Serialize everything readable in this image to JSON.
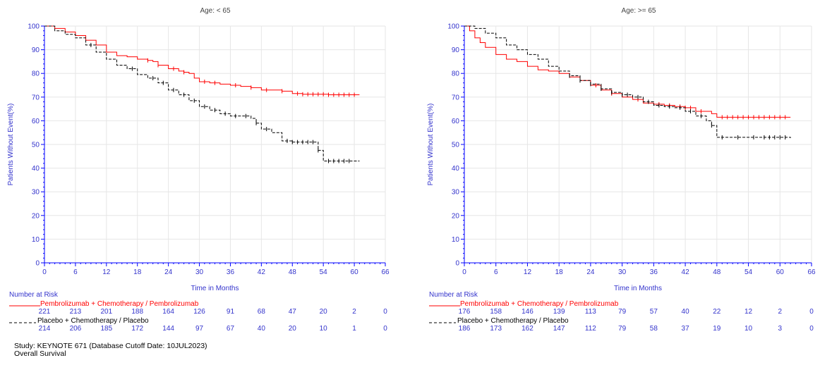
{
  "chart_data": [
    {
      "type": "line",
      "title": "Age: < 65",
      "xlabel": "Time in Months",
      "ylabel": "Patients Without Event(%)",
      "xlim": [
        0,
        66
      ],
      "ylim": [
        0,
        100
      ],
      "x_ticks": [
        0,
        6,
        12,
        18,
        24,
        30,
        36,
        42,
        48,
        54,
        60,
        66
      ],
      "y_ticks": [
        0,
        10,
        20,
        30,
        40,
        50,
        60,
        70,
        80,
        90,
        100
      ],
      "grid": true,
      "series": [
        {
          "name": "Pembrolizumab + Chemotherapy / Pembrolizumab",
          "color": "#ff0000",
          "dash": "solid",
          "x": [
            0,
            2,
            4,
            6,
            8,
            10,
            12,
            14,
            16,
            18,
            20,
            21,
            22,
            24,
            26,
            27,
            28,
            29,
            30,
            32,
            34,
            36,
            38,
            40,
            42,
            44,
            46,
            47,
            48,
            50,
            55,
            61
          ],
          "y": [
            100,
            99,
            97.5,
            96,
            94,
            92,
            89,
            87.5,
            87,
            86,
            85.5,
            85,
            83.5,
            82,
            81,
            80.5,
            80,
            78,
            76.5,
            76,
            75.5,
            75,
            74.5,
            74,
            73,
            73,
            72.5,
            72.5,
            71.5,
            71.2,
            71,
            71
          ],
          "censor_x": [
            20,
            22,
            25,
            27,
            31,
            33,
            37,
            40,
            43,
            46,
            49,
            50,
            51,
            52,
            53,
            54,
            55,
            56,
            57,
            58,
            59,
            60
          ]
        },
        {
          "name": "Placebo + Chemotherapy / Placebo",
          "color": "#000000",
          "dash": "dashed",
          "x": [
            0,
            2,
            4,
            6,
            8,
            10,
            12,
            14,
            16,
            18,
            20,
            22,
            24,
            26,
            28,
            30,
            32,
            34,
            36,
            38,
            40,
            41,
            42,
            44,
            46,
            48,
            50,
            53,
            54,
            61
          ],
          "y": [
            100,
            98,
            96.5,
            95,
            92,
            89,
            86,
            83.5,
            82,
            79.5,
            78,
            76,
            73,
            71,
            68.5,
            66,
            64.5,
            63,
            62,
            62,
            61,
            59,
            56.5,
            55,
            51.5,
            51,
            51,
            47.5,
            43,
            43
          ],
          "censor_x": [
            9,
            17,
            21,
            23,
            25,
            27,
            29,
            31,
            33,
            35,
            37,
            39,
            41,
            43,
            47,
            48,
            49,
            50,
            51,
            52,
            53,
            55,
            56,
            57,
            58,
            59
          ]
        }
      ],
      "risk_table": {
        "header": "Number at Risk",
        "times": [
          0,
          6,
          12,
          18,
          24,
          30,
          36,
          42,
          48,
          54,
          60,
          66
        ],
        "rows": [
          {
            "label": "Pembrolizumab + Chemotherapy / Pembrolizumab",
            "color": "#ff0000",
            "values": [
              "221",
              "213",
              "201",
              "188",
              "164",
              "126",
              "91",
              "68",
              "47",
              "20",
              "2",
              "0"
            ]
          },
          {
            "label": "Placebo + Chemotherapy / Placebo",
            "color": "#000000",
            "values": [
              "214",
              "206",
              "185",
              "172",
              "144",
              "97",
              "67",
              "40",
              "20",
              "10",
              "1",
              "0"
            ]
          }
        ]
      }
    },
    {
      "type": "line",
      "title": "Age: >= 65",
      "xlabel": "Time in Months",
      "ylabel": "Patients Without Event(%)",
      "xlim": [
        0,
        66
      ],
      "ylim": [
        0,
        100
      ],
      "x_ticks": [
        0,
        6,
        12,
        18,
        24,
        30,
        36,
        42,
        48,
        54,
        60,
        66
      ],
      "y_ticks": [
        0,
        10,
        20,
        30,
        40,
        50,
        60,
        70,
        80,
        90,
        100
      ],
      "grid": true,
      "series": [
        {
          "name": "Pembrolizumab + Chemotherapy / Pembrolizumab",
          "color": "#ff0000",
          "dash": "solid",
          "x": [
            0,
            1,
            2,
            3,
            4,
            6,
            8,
            10,
            12,
            14,
            16,
            18,
            20,
            22,
            24,
            26,
            28,
            30,
            32,
            34,
            36,
            38,
            40,
            42,
            44,
            46,
            47,
            48,
            62
          ],
          "y": [
            100,
            98,
            95,
            93,
            91,
            88,
            86,
            85,
            83,
            81.5,
            81,
            80,
            78.5,
            77,
            75,
            73,
            71.5,
            70,
            69,
            67.5,
            67,
            66.5,
            66,
            65.5,
            64,
            64,
            63,
            61.5,
            61.5
          ],
          "censor_x": [
            25,
            28,
            33,
            37,
            39,
            41,
            42,
            43,
            45,
            49,
            50,
            51,
            52,
            53,
            54,
            55,
            56,
            57,
            58,
            59,
            60,
            61
          ]
        },
        {
          "name": "Placebo + Chemotherapy / Placebo",
          "color": "#000000",
          "dash": "dashed",
          "x": [
            0,
            2,
            4,
            6,
            8,
            10,
            12,
            14,
            16,
            18,
            20,
            22,
            24,
            26,
            28,
            30,
            32,
            34,
            36,
            38,
            40,
            42,
            44,
            46,
            47,
            48,
            62
          ],
          "y": [
            100,
            99,
            97,
            95,
            92,
            90,
            88,
            86,
            83,
            81,
            79,
            77,
            75.5,
            73.5,
            72,
            71,
            70,
            68,
            66.5,
            66,
            65.5,
            64,
            62,
            60,
            58,
            53,
            52.7
          ],
          "censor_x": [
            20,
            22,
            24,
            26,
            28,
            30,
            31,
            33,
            35,
            37,
            39,
            41,
            43,
            45,
            47,
            49,
            52,
            55,
            57,
            58,
            59,
            60,
            61
          ]
        }
      ],
      "risk_table": {
        "header": "Number at Risk",
        "times": [
          0,
          6,
          12,
          18,
          24,
          30,
          36,
          42,
          48,
          54,
          60,
          66
        ],
        "rows": [
          {
            "label": "Pembrolizumab + Chemotherapy / Pembrolizumab",
            "color": "#ff0000",
            "values": [
              "176",
              "158",
              "146",
              "139",
              "113",
              "79",
              "57",
              "40",
              "22",
              "12",
              "2",
              "0"
            ]
          },
          {
            "label": "Placebo + Chemotherapy / Placebo",
            "color": "#000000",
            "values": [
              "186",
              "173",
              "162",
              "147",
              "112",
              "79",
              "58",
              "37",
              "19",
              "10",
              "3",
              "0"
            ]
          }
        ]
      }
    }
  ],
  "colors": {
    "axis": "#0000ff",
    "text_blue": "#3333cc",
    "grid": "#e6e6e6"
  },
  "footer": {
    "study": "Study: KEYNOTE 671 (Database Cutoff Date: 10JUL2023)",
    "endpoint": "Overall Survival"
  }
}
